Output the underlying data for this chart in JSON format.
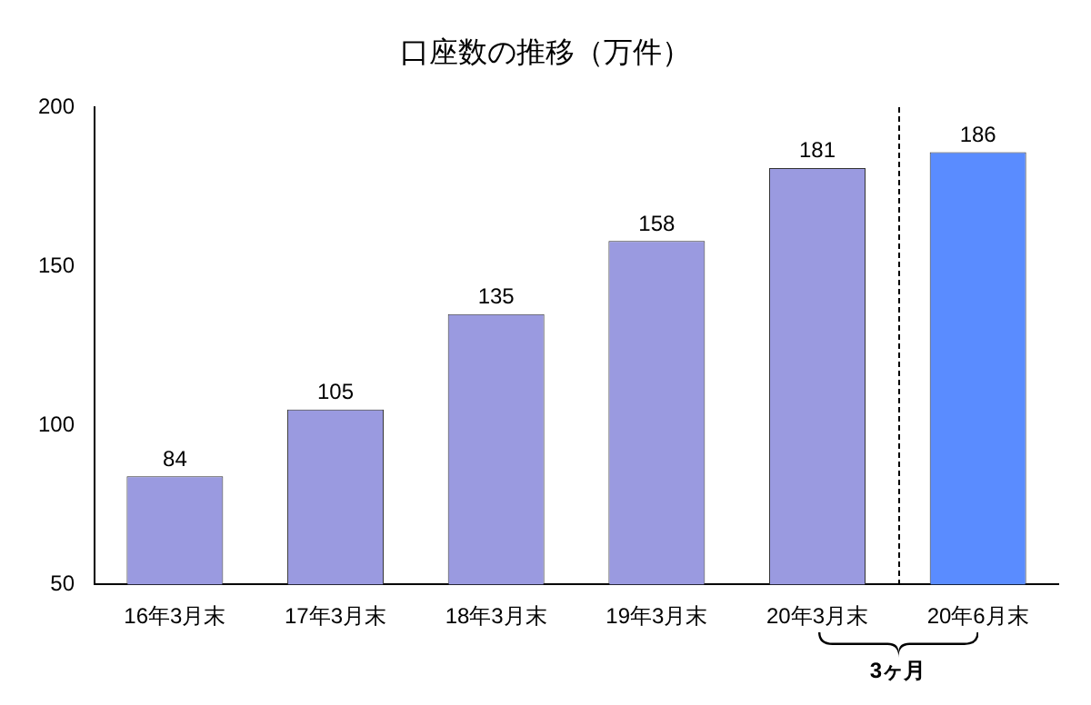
{
  "chart_data": {
    "type": "bar",
    "title": "口座数の推移（万件）",
    "categories": [
      "16年3月末",
      "17年3月末",
      "18年3月末",
      "19年3月末",
      "20年3月末",
      "20年6月末"
    ],
    "values": [
      84,
      105,
      135,
      158,
      181,
      186
    ],
    "colors": [
      "#9a9ae0",
      "#9a9ae0",
      "#9a9ae0",
      "#9a9ae0",
      "#9a9ae0",
      "#5a8cff"
    ],
    "ylim": [
      50,
      200
    ],
    "yticks": [
      50,
      100,
      150,
      200
    ],
    "grid": false,
    "legend": false,
    "data_labels": true,
    "annotations": [
      "3ヶ月"
    ]
  }
}
